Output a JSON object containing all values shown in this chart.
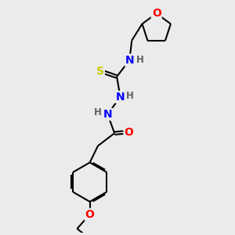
{
  "background_color": "#ebebeb",
  "atom_colors": {
    "C": "#000000",
    "N": "#0000ff",
    "O": "#ff0000",
    "S": "#cccc00",
    "H": "#606060"
  },
  "bond_lw": 1.5,
  "font_size_atom": 10,
  "font_size_H": 8.5,
  "xlim": [
    0,
    10
  ],
  "ylim": [
    0,
    10
  ]
}
